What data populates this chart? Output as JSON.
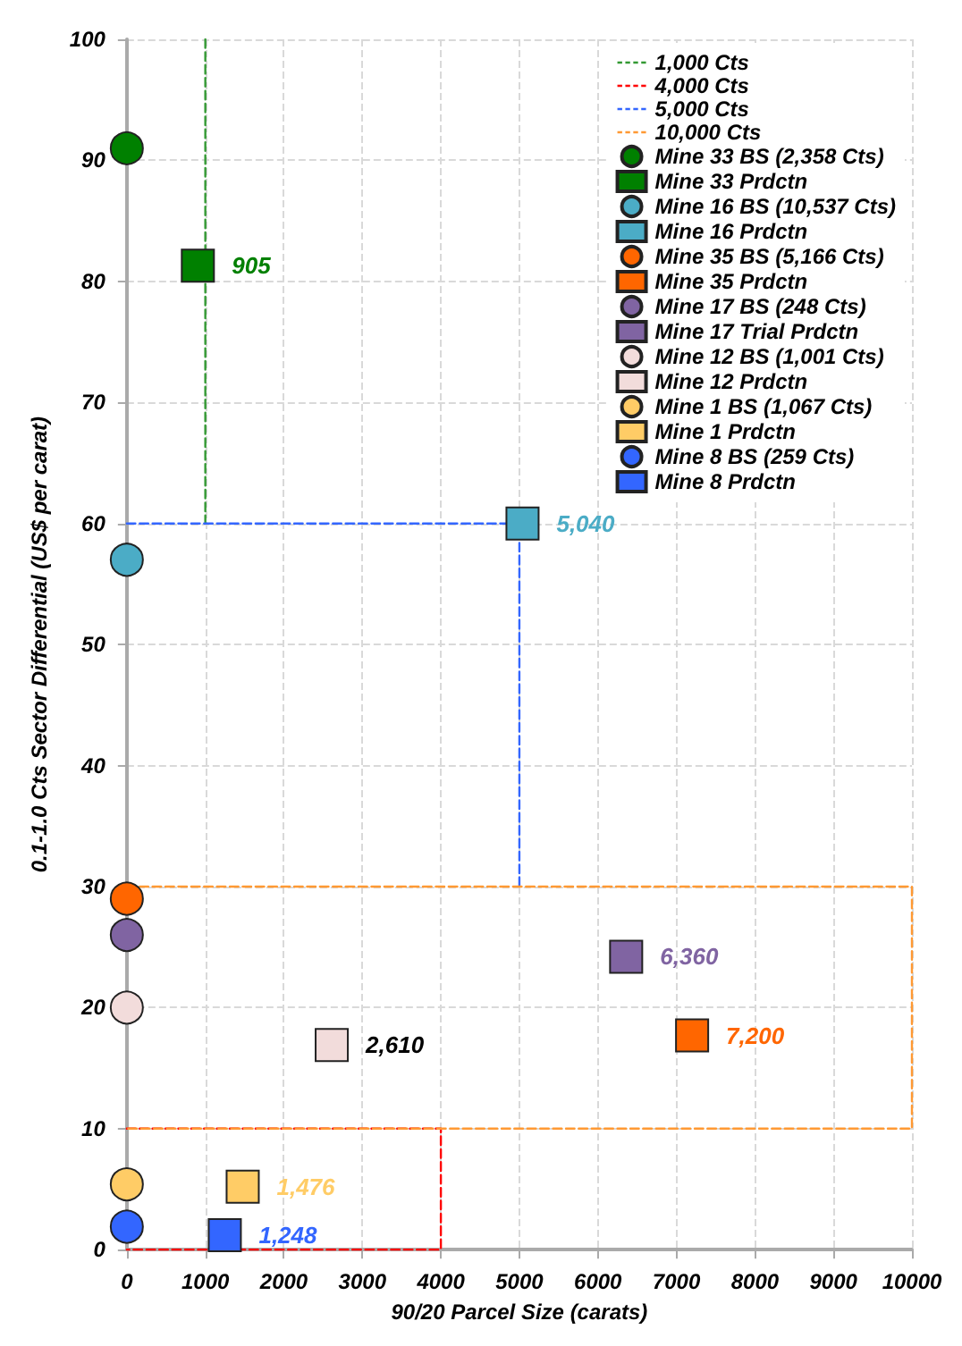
{
  "chart_data": {
    "type": "scatter",
    "xlabel": "90/20 Parcel Size (carats)",
    "ylabel": "0.1-1.0 Cts Sector Differential (US$ per carat)",
    "xlim": [
      0,
      10000
    ],
    "xticks": [
      0,
      1000,
      2000,
      3000,
      4000,
      5000,
      6000,
      7000,
      8000,
      9000,
      10000
    ],
    "ylim": [
      0,
      100
    ],
    "yticks": [
      0,
      10,
      20,
      30,
      40,
      50,
      60,
      70,
      80,
      90,
      100
    ],
    "grid": true,
    "legend": "top right",
    "series": [
      {
        "name": "1,000 Cts",
        "type": "line",
        "color": "#339933",
        "line_style": "dashed",
        "marker": "none",
        "x": [
          1000,
          1000
        ],
        "values": [
          100,
          60
        ]
      },
      {
        "name": "4,000 Cts",
        "type": "line",
        "color": "#ff0000",
        "line_style": "dashed",
        "marker": "none",
        "x": [
          0,
          4000,
          4000,
          0
        ],
        "values": [
          10,
          10,
          0,
          0
        ]
      },
      {
        "name": "5,000 Cts",
        "type": "line",
        "color": "#3366ff",
        "line_style": "dashed",
        "marker": "none",
        "x": [
          0,
          5000,
          5000
        ],
        "values": [
          60,
          60,
          30
        ]
      },
      {
        "name": "10,000 Cts",
        "type": "line",
        "color": "#ff9933",
        "line_style": "dashed",
        "marker": "none",
        "x": [
          0,
          10000,
          10000,
          0
        ],
        "values": [
          30,
          30,
          10,
          10
        ]
      },
      {
        "name": "Mine 33 BS (2,358 Cts)",
        "color": "#008000",
        "marker": "circle",
        "x": [
          0
        ],
        "values": [
          91
        ]
      },
      {
        "name": "Mine 33 Prdctn",
        "color": "#008000",
        "marker": "square",
        "x": [
          905
        ],
        "values": [
          81.3
        ]
      },
      {
        "name": "Mine 16 BS (10,537 Cts)",
        "color": "#4bacc6",
        "marker": "circle",
        "x": [
          0
        ],
        "values": [
          57
        ]
      },
      {
        "name": "Mine 16 Prdctn",
        "color": "#4bacc6",
        "marker": "square",
        "x": [
          5040
        ],
        "values": [
          60
        ]
      },
      {
        "name": "Mine 35 BS (5,166 Cts)",
        "color": "#ff6600",
        "marker": "circle",
        "x": [
          0
        ],
        "values": [
          29
        ]
      },
      {
        "name": "Mine 35 Prdctn",
        "color": "#ff6600",
        "marker": "square",
        "x": [
          7200
        ],
        "values": [
          17.7
        ]
      },
      {
        "name": "Mine 17 BS (248 Cts)",
        "color": "#8064a2",
        "marker": "circle",
        "x": [
          0
        ],
        "values": [
          26
        ]
      },
      {
        "name": "Mine 17 Trial Prdctn",
        "color": "#8064a2",
        "marker": "square",
        "x": [
          6360
        ],
        "values": [
          24.2
        ]
      },
      {
        "name": "Mine 12 BS (1,001 Cts)",
        "color": "#f2dcdb",
        "marker": "circle",
        "x": [
          0
        ],
        "values": [
          20
        ]
      },
      {
        "name": "Mine 12 Prdctn",
        "color": "#f2dcdb",
        "marker": "square",
        "x": [
          2610
        ],
        "values": [
          16.9
        ]
      },
      {
        "name": "Mine 1 BS (1,067 Cts)",
        "color": "#ffcc66",
        "marker": "circle",
        "x": [
          0
        ],
        "values": [
          5.4
        ]
      },
      {
        "name": "Mine 1 Prdctn",
        "color": "#ffcc66",
        "marker": "square",
        "x": [
          1476
        ],
        "values": [
          5.2
        ]
      },
      {
        "name": "Mine 8 BS (259 Cts)",
        "color": "#3366ff",
        "marker": "circle",
        "x": [
          0
        ],
        "values": [
          1.9
        ]
      },
      {
        "name": "Mine 8 Prdctn",
        "color": "#3366ff",
        "marker": "square",
        "x": [
          1248
        ],
        "values": [
          1.2
        ]
      }
    ],
    "annotations": [
      {
        "text": "905",
        "x": 905,
        "y": 81.3
      },
      {
        "text": "5,040",
        "x": 5040,
        "y": 60
      },
      {
        "text": "7,200",
        "x": 7200,
        "y": 17.7
      },
      {
        "text": "6,360",
        "x": 6360,
        "y": 24.2
      },
      {
        "text": "2,610",
        "x": 2610,
        "y": 16.9
      },
      {
        "text": "1,476",
        "x": 1476,
        "y": 5.2
      },
      {
        "text": "1,248",
        "x": 1248,
        "y": 1.2
      }
    ]
  }
}
